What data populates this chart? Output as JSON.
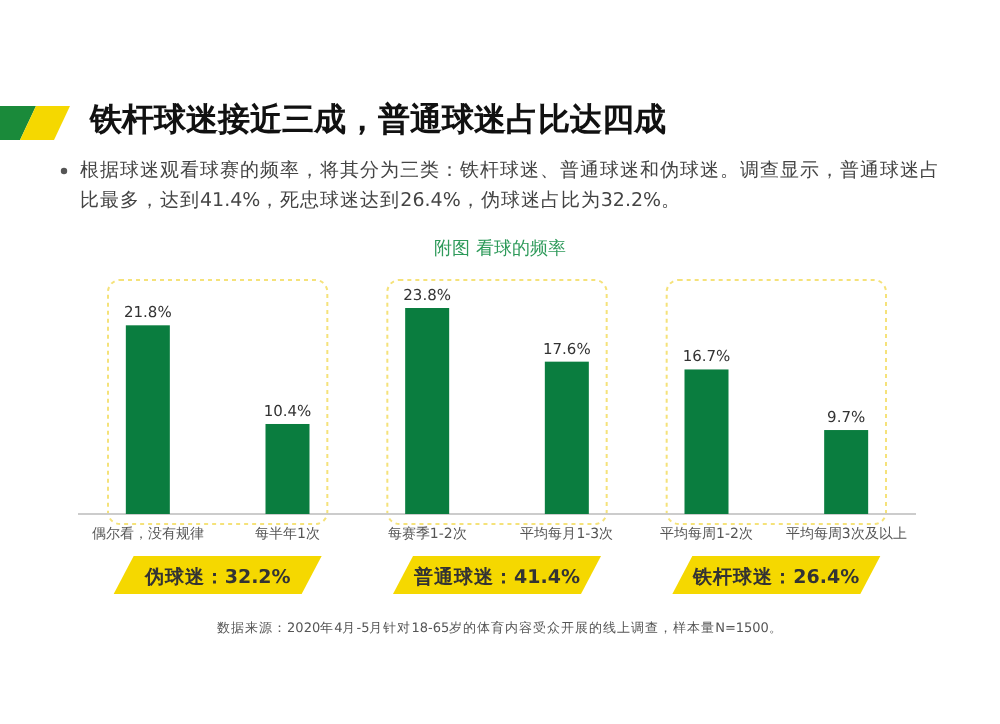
{
  "chart_data": {
    "type": "bar",
    "title": "铁杆球迷接近三成，普通球迷占比达四成",
    "subtitle": "根据球迷观看球赛的频率，将其分为三类：铁杆球迷、普通球迷和伪球迷。调查显示，普通球迷占比最多，达到41.4%，死忠球迷达到26.4%，伪球迷占比为32.2%。",
    "xlabel": "附图  看球的频率",
    "categories": [
      "偶尔看，没有规律",
      "每半年1次",
      "每赛季1-2次",
      "平均每月1-3次",
      "平均每周1-2次",
      "平均每周3次及以上"
    ],
    "values": [
      21.8,
      10.4,
      23.8,
      17.6,
      16.7,
      9.7
    ],
    "value_labels": [
      "21.8%",
      "10.4%",
      "23.8%",
      "17.6%",
      "16.7%",
      "9.7%"
    ],
    "color": "#0a7d3f",
    "annotations": [
      "伪球迷：32.2%",
      "普通球迷：41.4%",
      "铁杆球迷：26.4%",
      "数据来源：2020年4月-5月针对18-65岁的体育内容受众开展的线上调查，样本量N=1500。"
    ]
  }
}
